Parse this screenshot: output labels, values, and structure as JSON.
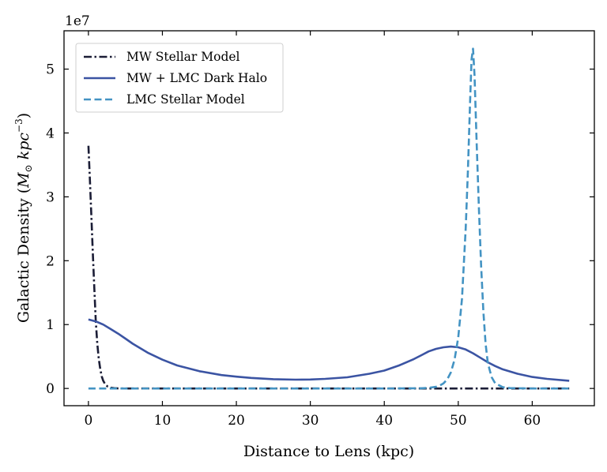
{
  "chart_data": {
    "type": "line",
    "title": "",
    "xlabel": "Distance to Lens (kpc)",
    "ylabel_main": "Galactic Density (",
    "ylabel_math_M": "M",
    "ylabel_math_sun": "⊙",
    "ylabel_math_kpc": " kpc",
    "ylabel_math_exp": "−3",
    "ylabel_close": ")",
    "y_offset_text": "1e7",
    "xlim": [
      -3.3,
      68.4
    ],
    "ylim": [
      -0.27,
      5.6
    ],
    "y_scale": 10000000,
    "xticks": [
      0,
      10,
      20,
      30,
      40,
      50,
      60
    ],
    "yticks": [
      0,
      1,
      2,
      3,
      4,
      5
    ],
    "grid": false,
    "legend_position": "top-left",
    "series": [
      {
        "name": "MW Stellar Model",
        "style": "dashdot",
        "color": "#1b1d36",
        "x": [
          0,
          0.2,
          0.4,
          0.6,
          0.8,
          1.0,
          1.2,
          1.4,
          1.6,
          1.8,
          2.0,
          2.3,
          2.6,
          3.0,
          3.5,
          4.0,
          5.0,
          10,
          20,
          30,
          40,
          50,
          60,
          65
        ],
        "y": [
          3.8,
          3.25,
          2.7,
          2.1,
          1.55,
          1.05,
          0.7,
          0.46,
          0.3,
          0.19,
          0.12,
          0.06,
          0.03,
          0.012,
          0.004,
          0.001,
          0,
          0,
          0,
          0,
          0,
          0,
          0,
          0
        ]
      },
      {
        "name": "MW + LMC Dark Halo",
        "style": "solid",
        "color": "#3b54a3",
        "x": [
          0,
          1,
          2,
          3,
          4,
          5,
          6,
          8,
          10,
          12,
          15,
          18,
          20,
          22,
          25,
          28,
          30,
          32,
          35,
          38,
          40,
          42,
          44,
          45,
          46,
          47,
          48,
          49,
          50,
          51,
          52,
          53,
          54,
          55,
          56,
          58,
          60,
          62,
          65
        ],
        "y": [
          1.08,
          1.05,
          1.0,
          0.93,
          0.86,
          0.78,
          0.7,
          0.56,
          0.45,
          0.36,
          0.27,
          0.21,
          0.185,
          0.165,
          0.145,
          0.138,
          0.14,
          0.15,
          0.175,
          0.23,
          0.28,
          0.36,
          0.46,
          0.52,
          0.58,
          0.62,
          0.645,
          0.655,
          0.645,
          0.61,
          0.55,
          0.48,
          0.41,
          0.35,
          0.3,
          0.23,
          0.18,
          0.15,
          0.12
        ]
      },
      {
        "name": "LMC Stellar Model",
        "style": "dashed",
        "color": "#4393c3",
        "x": [
          0,
          10,
          20,
          30,
          40,
          45,
          46,
          47,
          47.5,
          48,
          48.5,
          49,
          49.5,
          50,
          50.5,
          51,
          51.3,
          51.6,
          51.8,
          52.0,
          52.2,
          52.5,
          52.8,
          53.1,
          53.4,
          53.7,
          54,
          54.5,
          55,
          56,
          57,
          60,
          65
        ],
        "y": [
          0,
          0,
          0,
          0,
          0,
          0.003,
          0.01,
          0.025,
          0.045,
          0.08,
          0.14,
          0.25,
          0.45,
          0.8,
          1.4,
          2.5,
          3.4,
          4.5,
          5.15,
          5.32,
          4.9,
          3.8,
          2.8,
          1.9,
          1.2,
          0.7,
          0.4,
          0.18,
          0.08,
          0.02,
          0.005,
          0,
          0
        ]
      }
    ]
  }
}
